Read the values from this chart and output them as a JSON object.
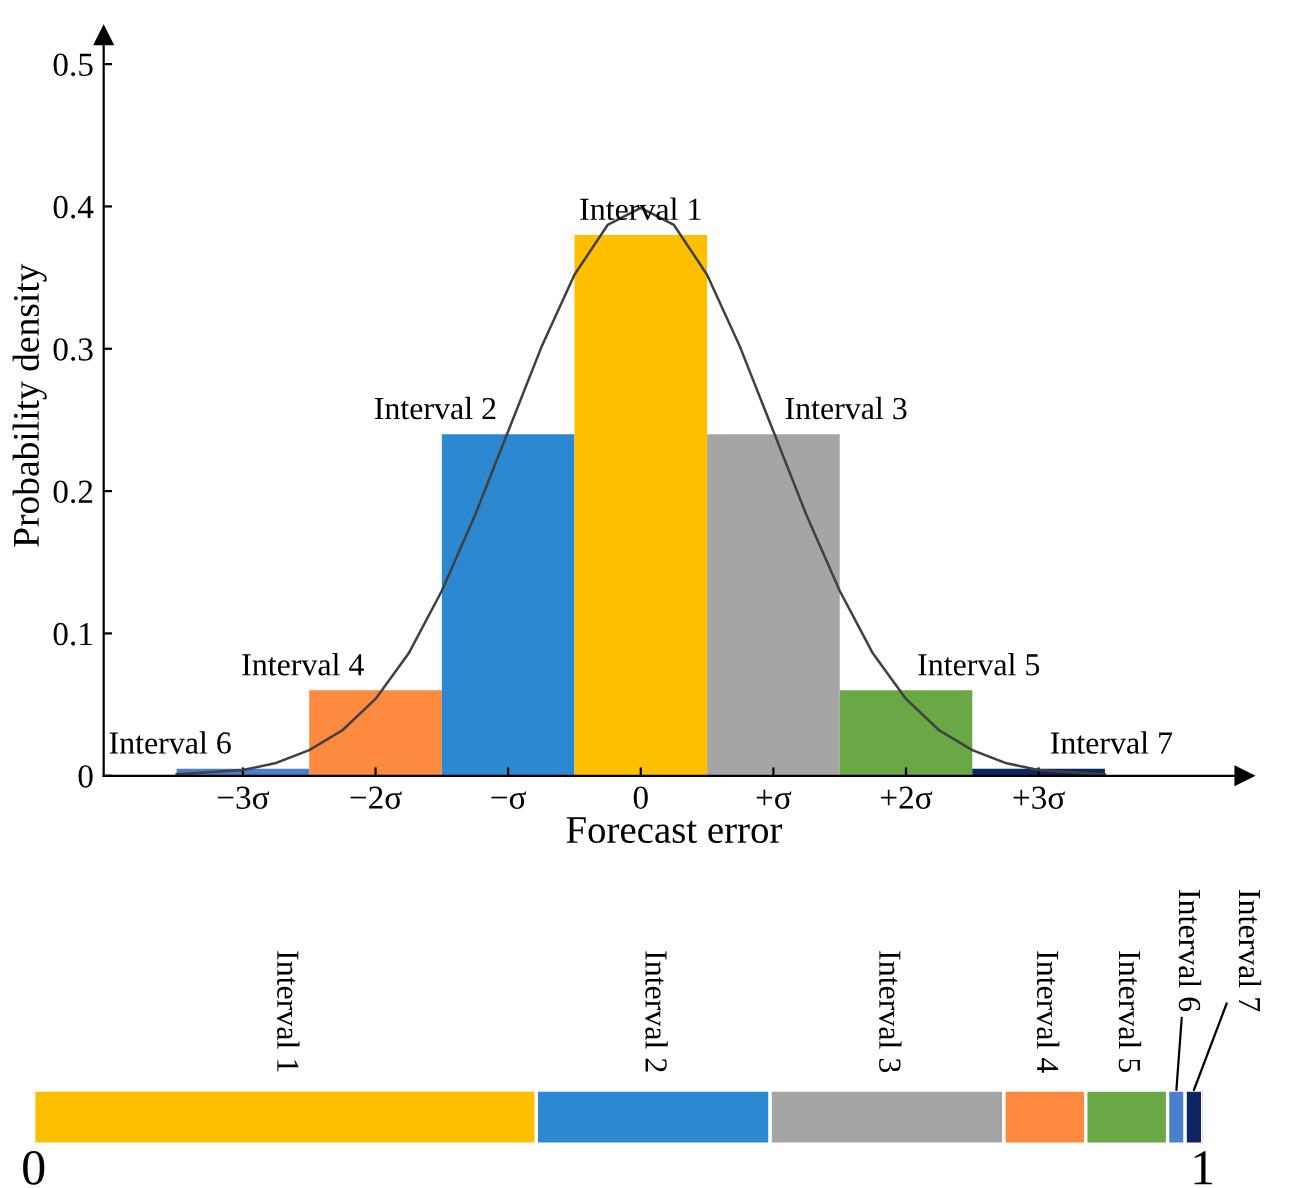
{
  "chart_data": [
    {
      "type": "histogram",
      "xlabel": "Forecast error",
      "ylabel": "Probability density",
      "series": [
        {
          "type": "histogram",
          "bins": [
            -3.5,
            -2.5,
            -1.5,
            -0.5,
            0.5,
            1.5,
            2.5,
            3.5
          ],
          "values": [
            0.005,
            0.06,
            0.24,
            0.38,
            0.24,
            0.06,
            0.005
          ],
          "colors": [
            "#4a7fd0",
            "#fe8a3f",
            "#2c88d0",
            "#ffbf00",
            "#a5a5a5",
            "#6aa745",
            "#0c2461"
          ]
        },
        {
          "type": "line",
          "x": [
            -3.5,
            -3,
            -2.75,
            -2.5,
            -2.25,
            -2,
            -1.75,
            -1.5,
            -1.25,
            -1,
            -0.75,
            -0.5,
            -0.25,
            0,
            0.25,
            0.5,
            0.75,
            1,
            1.25,
            1.5,
            1.75,
            2,
            2.25,
            2.5,
            2.75,
            3,
            3.5
          ],
          "values": [
            0.001,
            0.004,
            0.009,
            0.018,
            0.032,
            0.054,
            0.086,
            0.13,
            0.183,
            0.242,
            0.301,
            0.352,
            0.387,
            0.399,
            0.387,
            0.352,
            0.301,
            0.242,
            0.183,
            0.13,
            0.086,
            0.054,
            0.032,
            0.018,
            0.009,
            0.004,
            0.001
          ],
          "color": "#404040"
        }
      ],
      "annotations": [
        {
          "text": "Interval 6",
          "x": -3,
          "y": 0.005
        },
        {
          "text": "Interval 4",
          "x": -2,
          "y": 0.06
        },
        {
          "text": "Interval 2",
          "x": -1,
          "y": 0.24
        },
        {
          "text": "Interval 1",
          "x": 0,
          "y": 0.38
        },
        {
          "text": "Interval 3",
          "x": 1,
          "y": 0.24
        },
        {
          "text": "Interval 5",
          "x": 2,
          "y": 0.06
        },
        {
          "text": "Interval 7",
          "x": 3,
          "y": 0.005
        }
      ],
      "xlim": [
        -4.05,
        4.55
      ],
      "ylim": [
        0,
        0.52
      ],
      "xticks": [
        {
          "value": -3,
          "label": "−3σ"
        },
        {
          "value": -2,
          "label": "−2σ"
        },
        {
          "value": -1,
          "label": "−σ"
        },
        {
          "value": 0,
          "label": "0"
        },
        {
          "value": 1,
          "label": "+σ"
        },
        {
          "value": 2,
          "label": "+2σ"
        },
        {
          "value": 3,
          "label": "+3σ"
        }
      ],
      "yticks": [
        0,
        0.1,
        0.2,
        0.3,
        0.4,
        0.5
      ],
      "grid": false,
      "legend": false
    },
    {
      "type": "bar",
      "orientation": "horizontal",
      "stacked": true,
      "categories": [
        null
      ],
      "series": [
        {
          "name": "Interval 1",
          "color": "#ffbf00",
          "values": [
            0.43
          ]
        },
        {
          "name": "Interval 2",
          "color": "#2c88d0",
          "values": [
            0.2
          ]
        },
        {
          "name": "Interval 3",
          "color": "#a5a5a5",
          "values": [
            0.2
          ]
        },
        {
          "name": "Interval 4",
          "color": "#fe8a3f",
          "values": [
            0.07
          ]
        },
        {
          "name": "Interval 5",
          "color": "#6aa745",
          "values": [
            0.07
          ]
        },
        {
          "name": "Interval 6",
          "color": "#4a7fd0",
          "values": [
            0.015
          ]
        },
        {
          "name": "Interval 7",
          "color": "#0c2461",
          "values": [
            0.015
          ]
        }
      ],
      "xlim": [
        0,
        1
      ],
      "xticks": [
        0,
        1
      ],
      "tick_labels": "x",
      "grid": false,
      "legend": false
    }
  ]
}
